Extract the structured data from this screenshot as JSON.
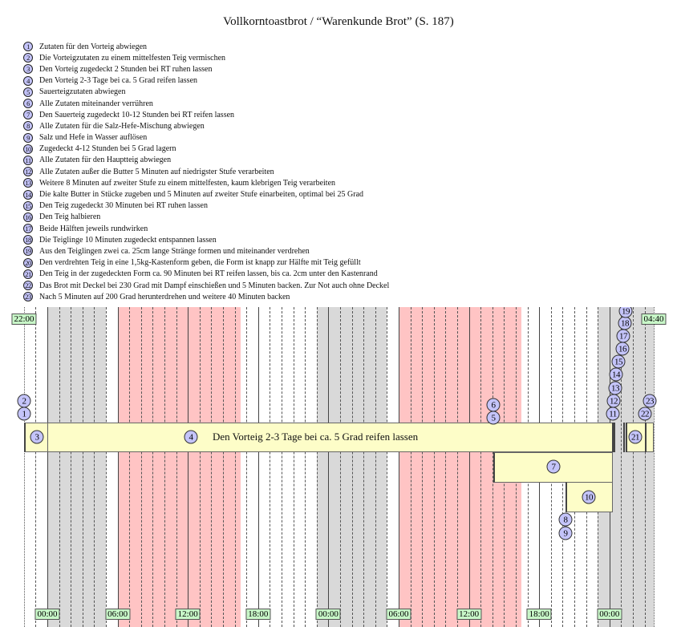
{
  "title": "Vollkorntoastbrot / “Warenkunde Brot” (S. 187)",
  "steps": [
    "Zutaten für den Vorteig abwiegen",
    "Die Vorteigzutaten zu einem mittelfesten Teig vermischen",
    "Den Vorteig zugedeckt 2 Stunden bei RT ruhen lassen",
    "Den Vorteig 2-3 Tage bei ca. 5 Grad reifen lassen",
    "Sauerteigzutaten abwiegen",
    "Alle Zutaten miteinander verrühren",
    "Den Sauerteig zugedeckt 10-12 Stunden bei RT reifen lassen",
    "Alle Zutaten für die Salz-Hefe-Mischung abwiegen",
    "Salz und Hefe in Wasser auflösen",
    "Zugedeckt 4-12 Stunden bei 5 Grad lagern",
    "Alle Zutaten für den Hauptteig abwiegen",
    "Alle Zutaten außer die Butter 5 Minuten auf niedrigster Stufe verarbeiten",
    "Weitere 8 Minuten auf zweiter Stufe zu einem mittelfesten, kaum klebrigen Teig verarbeiten",
    "Die kalte Butter in Stücke zugeben und 5 Minuten auf zweiter Stufe einarbeiten, optimal bei 25 Grad",
    "Den Teig zugedeckt 30 Minuten bei RT ruhen lassen",
    "Den Teig halbieren",
    "Beide Hälften jeweils rundwirken",
    "Die Teiglinge 10 Minuten zugedeckt entspannen lassen",
    "Aus den Teiglingen zwei ca. 25cm lange Stränge formen und miteinander verdrehen",
    "Den verdrehten Teig in eine 1,5kg-Kastenform geben, die Form ist knapp zur Hälfte mit Teig gefüllt",
    "Den Teig in der zugedeckten Form ca. 90 Minuten bei RT reifen lassen, bis ca. 2cm unter den Kastenrand",
    "Das Brot mit Deckel bei 230 Grad mit Dampf einschießen und 5 Minuten backen. Zur Not auch ohne Deckel",
    "Nach 5 Minuten auf 200 Grad herunterdrehen und weitere 40 Minuten backen"
  ],
  "timeline": {
    "start_label": "22:00",
    "end_label": "04:40",
    "bottom_labels": [
      "00:00",
      "06:00",
      "12:00",
      "18:00",
      "00:00",
      "06:00",
      "12:00",
      "18:00",
      "00:00"
    ],
    "bar_text": "Den Vorteig 2-3 Tage bei ca. 5 Grad reifen lassen",
    "night_hours": [
      [
        0,
        5
      ],
      [
        23,
        29
      ],
      [
        47,
        52
      ]
    ],
    "work_hours": [
      [
        6,
        16.5
      ],
      [
        30,
        40.5
      ]
    ],
    "colors": {
      "night": "#d9d9d9",
      "work": "#ffc4c4",
      "bar": "#fdfdc8",
      "marker": "#c4c4fa",
      "tick": "#c8f7c8"
    }
  }
}
